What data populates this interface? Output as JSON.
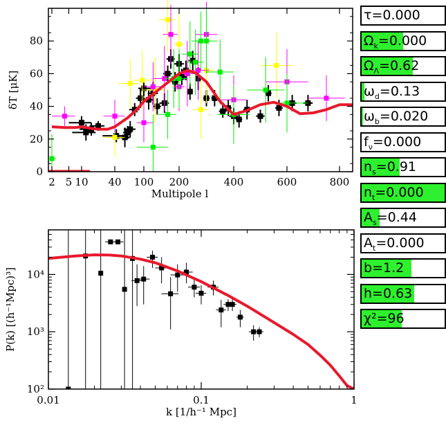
{
  "chart_data": [
    {
      "type": "scatter",
      "title": "",
      "xlabel": "Multipole l",
      "ylabel": "δT [μK]",
      "x_ticks": [
        "2",
        "5",
        "10",
        "40",
        "100",
        "200",
        "400",
        "600",
        "800"
      ],
      "x_tick_values": [
        2,
        5,
        10,
        40,
        100,
        200,
        400,
        600,
        800
      ],
      "x_scale": "mixed (log below 200, linear above)",
      "y_ticks": [
        "0",
        "20",
        "40",
        "60",
        "80"
      ],
      "ylim": [
        0,
        100
      ],
      "grid": false,
      "legend": "none",
      "model_curve": {
        "color": "#e8192c",
        "points": [
          [
            2,
            27.5
          ],
          [
            4,
            27
          ],
          [
            7,
            27
          ],
          [
            10,
            27.5
          ],
          [
            15,
            26.5
          ],
          [
            20,
            26
          ],
          [
            30,
            26
          ],
          [
            40,
            27.5
          ],
          [
            60,
            33
          ],
          [
            80,
            38
          ],
          [
            100,
            43
          ],
          [
            150,
            53
          ],
          [
            200,
            60
          ],
          [
            230,
            62
          ],
          [
            260,
            60.5
          ],
          [
            300,
            55
          ],
          [
            350,
            43
          ],
          [
            400,
            35
          ],
          [
            450,
            37.5
          ],
          [
            500,
            41
          ],
          [
            550,
            42.5
          ],
          [
            600,
            40
          ],
          [
            650,
            35.5
          ],
          [
            700,
            36
          ],
          [
            750,
            38
          ],
          [
            800,
            41
          ],
          [
            850,
            41
          ]
        ]
      },
      "series": [
        {
          "color": "#000000",
          "points": [
            [
              10,
              30,
              5,
              4
            ],
            [
              12,
              24,
              6,
              5
            ],
            [
              15,
              26,
              6,
              4
            ],
            [
              20,
              28,
              6,
              3
            ],
            [
              42,
              22,
              18,
              4
            ],
            [
              55,
              21,
              10,
              6
            ],
            [
              60,
              24,
              8,
              4
            ],
            [
              65,
              26,
              12,
              5
            ],
            [
              75,
              38,
              12,
              4
            ],
            [
              90,
              45,
              12,
              6
            ],
            [
              100,
              51,
              16,
              5
            ],
            [
              110,
              44,
              12,
              6
            ],
            [
              120,
              48,
              12,
              7
            ],
            [
              130,
              40,
              10,
              5
            ],
            [
              150,
              42,
              14,
              6
            ],
            [
              160,
              60,
              14,
              5
            ],
            [
              170,
              69,
              14,
              6
            ],
            [
              185,
              55,
              12,
              6
            ],
            [
              200,
              66,
              18,
              6
            ],
            [
              210,
              58,
              14,
              5
            ],
            [
              225,
              62,
              12,
              6
            ],
            [
              240,
              49,
              10,
              5
            ],
            [
              250,
              68,
              16,
              6
            ],
            [
              270,
              57,
              10,
              7
            ],
            [
              300,
              45,
              12,
              5
            ],
            [
              330,
              45,
              12,
              5
            ],
            [
              360,
              37,
              14,
              4
            ],
            [
              380,
              39,
              12,
              5
            ],
            [
              400,
              34,
              16,
              5
            ],
            [
              420,
              32,
              12,
              5
            ],
            [
              450,
              38,
              14,
              6
            ],
            [
              500,
              34,
              16,
              4
            ],
            [
              530,
              48,
              12,
              5
            ],
            [
              570,
              39,
              14,
              5
            ],
            [
              620,
              42,
              16,
              5
            ],
            [
              680,
              42,
              18,
              5
            ]
          ]
        },
        {
          "color": "#ffff00",
          "points": [
            [
              40,
              21,
              15,
              12
            ],
            [
              65,
              54,
              20,
              15
            ],
            [
              95,
              56,
              25,
              18
            ],
            [
              125,
              50,
              30,
              20
            ],
            [
              160,
              93,
              25,
              20
            ],
            [
              200,
              78,
              20,
              20
            ],
            [
              300,
              62,
              30,
              20
            ],
            [
              560,
              65,
              60,
              20
            ],
            [
              280,
              38,
              30,
              18
            ]
          ]
        },
        {
          "color": "#ff00ff",
          "points": [
            [
              4,
              34,
              3,
              6
            ],
            [
              40,
              34,
              15,
              10
            ],
            [
              100,
              30,
              20,
              12
            ],
            [
              120,
              52,
              20,
              15
            ],
            [
              150,
              57,
              30,
              20
            ],
            [
              170,
              84,
              25,
              18
            ],
            [
              200,
              52,
              20,
              15
            ],
            [
              230,
              60,
              30,
              20
            ],
            [
              270,
              62,
              40,
              18
            ],
            [
              300,
              84,
              40,
              20
            ],
            [
              400,
              44,
              50,
              15
            ],
            [
              600,
              55,
              80,
              20
            ],
            [
              750,
              45,
              70,
              14
            ]
          ]
        },
        {
          "color": "#00ee00",
          "points": [
            [
              2,
              8,
              0.5,
              15
            ],
            [
              120,
              15,
              40,
              20
            ],
            [
              160,
              35,
              30,
              15
            ],
            [
              180,
              57,
              30,
              18
            ],
            [
              200,
              57,
              30,
              18
            ],
            [
              240,
              72,
              30,
              20
            ],
            [
              260,
              67,
              30,
              20
            ],
            [
              280,
              80,
              35,
              18
            ],
            [
              300,
              80,
              40,
              20
            ],
            [
              350,
              61,
              50,
              20
            ],
            [
              400,
              35,
              60,
              18
            ],
            [
              520,
              50,
              70,
              20
            ],
            [
              600,
              42,
              80,
              18
            ]
          ]
        }
      ]
    },
    {
      "type": "scatter",
      "title": "",
      "xlabel": "k [1/h⁻¹ Mpc]",
      "ylabel": "P(k) [(h⁻¹Mpc)³]",
      "x_scale": "log",
      "y_scale": "log",
      "xlim": [
        0.01,
        1
      ],
      "ylim": [
        100,
        60000
      ],
      "x_ticks": [
        "0.01",
        "0.1",
        "1"
      ],
      "y_ticks": [
        "10²",
        "10³",
        "10⁴"
      ],
      "grid": false,
      "legend": "none",
      "model_curve": {
        "color": "#e8192c",
        "points": [
          [
            0.01,
            19000
          ],
          [
            0.015,
            21000
          ],
          [
            0.02,
            22000
          ],
          [
            0.025,
            21800
          ],
          [
            0.03,
            21000
          ],
          [
            0.04,
            18500
          ],
          [
            0.05,
            16000
          ],
          [
            0.07,
            11500
          ],
          [
            0.1,
            7500
          ],
          [
            0.15,
            4300
          ],
          [
            0.2,
            2800
          ],
          [
            0.3,
            1450
          ],
          [
            0.4,
            900
          ],
          [
            0.5,
            600
          ],
          [
            0.6,
            390
          ],
          [
            0.7,
            260
          ],
          [
            0.8,
            170
          ],
          [
            0.9,
            115
          ],
          [
            1.0,
            80
          ]
        ]
      },
      "series": [
        {
          "color": "#000000",
          "points": [
            [
              0.0135,
              40,
              0.0135,
              40,
              60000
            ],
            [
              0.0175,
              21000,
              0.0175,
              40,
              60000
            ],
            [
              0.022,
              10500,
              0.022,
              40,
              60000
            ],
            [
              0.0255,
              37000,
              0.0235,
              0.028,
              35000,
              40000
            ],
            [
              0.0285,
              37000,
              0.0265,
              0.031,
              35000,
              40000
            ],
            [
              0.0315,
              5500,
              0.0315,
              40,
              60000
            ],
            [
              0.0355,
              19000,
              0.0355,
              40,
              60000
            ],
            [
              0.038,
              7800,
              0.035,
              0.041,
              2800,
              15000
            ],
            [
              0.042,
              8300,
              0.038,
              0.046,
              3000,
              14000
            ],
            [
              0.048,
              20000,
              0.044,
              0.052,
              13000,
              26000
            ],
            [
              0.055,
              13000,
              0.05,
              0.06,
              7000,
              20000
            ],
            [
              0.063,
              4600,
              0.055,
              0.071,
              1100,
              9000
            ],
            [
              0.07,
              9800,
              0.063,
              0.077,
              5000,
              15000
            ],
            [
              0.08,
              11000,
              0.072,
              0.088,
              7000,
              16000
            ],
            [
              0.09,
              6000,
              0.082,
              0.098,
              4000,
              9000
            ],
            [
              0.1,
              4700,
              0.092,
              0.108,
              3000,
              6500
            ],
            [
              0.12,
              6000,
              0.11,
              0.13,
              4300,
              7800
            ],
            [
              0.135,
              2400,
              0.125,
              0.145,
              1200,
              3600
            ],
            [
              0.15,
              3000,
              0.14,
              0.16,
              2300,
              3700
            ],
            [
              0.16,
              3000,
              0.15,
              0.17,
              2300,
              3700
            ],
            [
              0.18,
              1800,
              0.17,
              0.19,
              1200,
              2400
            ],
            [
              0.22,
              1000,
              0.205,
              0.235,
              700,
              1300
            ],
            [
              0.24,
              1000,
              0.225,
              0.255,
              800,
              1200
            ]
          ]
        }
      ]
    }
  ],
  "params": [
    {
      "sym": "τ",
      "sub": "",
      "val": "=0.000",
      "fill": 0.0
    },
    {
      "sym": "Ω",
      "sub": "k",
      "val": "=0.000",
      "fill": 0.5
    },
    {
      "sym": "Ω",
      "sub": "Λ",
      "val": "=0.62",
      "fill": 0.62
    },
    {
      "sym": "ω",
      "sub": "d",
      "val": "=0.13",
      "fill": 0.03
    },
    {
      "sym": "ω",
      "sub": "b",
      "val": "=0.020",
      "fill": 0.02
    },
    {
      "sym": "f",
      "sub": "ν",
      "val": "=0.000",
      "fill": 0.0
    },
    {
      "sym": "n",
      "sub": "s",
      "val": "=0.91",
      "fill": 0.46
    },
    {
      "sym": "n",
      "sub": "t",
      "val": "=0.000",
      "fill": 1.0
    },
    {
      "sym": "A",
      "sub": "s",
      "val": "=0.44",
      "fill": 0.22
    },
    {
      "sym": "A",
      "sub": "t",
      "val": "=0.000",
      "fill": 0.0
    },
    {
      "sym": "b",
      "sub": "",
      "val": "=1.2",
      "fill": 0.6
    },
    {
      "sym": "h",
      "sub": "",
      "val": "=0.63",
      "fill": 0.63
    },
    {
      "sym": "χ²",
      "sub": "",
      "val": "=96",
      "fill": 0.48
    }
  ]
}
